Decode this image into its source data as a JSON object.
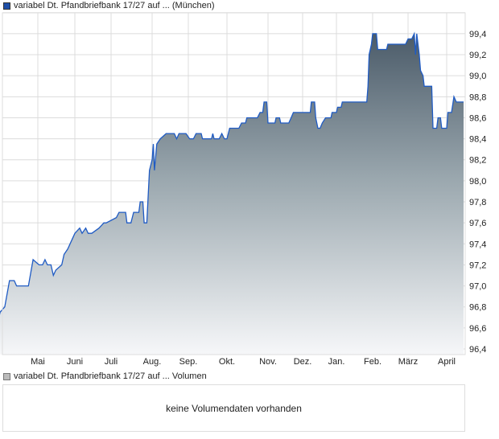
{
  "price_legend": {
    "label": "variabel Dt. Pfandbriefbank 17/27 auf ... (München)",
    "color": "#1f4fa8"
  },
  "volume_legend": {
    "label": "variabel Dt. Pfandbriefbank 17/27 auf ... Volumen",
    "color": "#bbbbbb"
  },
  "volume_message": "keine Volumendaten vorhanden",
  "chart_data": {
    "type": "area",
    "title": "",
    "xlabel": "",
    "ylabel": "",
    "ylim": [
      96.4,
      99.6
    ],
    "yticks": [
      "96,4",
      "96,6",
      "96,8",
      "97,0",
      "97,2",
      "97,4",
      "97,6",
      "97,8",
      "98,0",
      "98,2",
      "98,4",
      "98,6",
      "98,8",
      "99,0",
      "99,2",
      "99,4"
    ],
    "xticks": [
      "Mai",
      "Juni",
      "Juli",
      "Aug.",
      "Sep.",
      "Okt.",
      "Nov.",
      "Dez.",
      "Jan.",
      "Feb.",
      "März",
      "April"
    ],
    "grid": true,
    "line_color": "#1f5bc4",
    "fill_top_color": "#4b5b69",
    "fill_bottom_color": "#f6f7f9",
    "series": [
      {
        "points": [
          [
            "04-01",
            96.75
          ],
          [
            "04-04",
            96.7
          ],
          [
            "04-06",
            96.7
          ],
          [
            "04-07",
            97.15
          ],
          [
            "04-10",
            97.15
          ],
          [
            "04-11",
            96.75
          ],
          [
            "04-12",
            96.65
          ],
          [
            "04-14",
            96.65
          ],
          [
            "04-15",
            96.75
          ],
          [
            "04-17",
            96.8
          ],
          [
            "04-19",
            97.05
          ],
          [
            "04-21",
            97.05
          ],
          [
            "04-22",
            97.0
          ],
          [
            "04-27",
            97.0
          ],
          [
            "04-29",
            97.25
          ],
          [
            "05-02",
            97.2
          ],
          [
            "05-05",
            97.2
          ],
          [
            "05-07",
            97.25
          ],
          [
            "05-09",
            97.2
          ],
          [
            "05-12",
            97.2
          ],
          [
            "05-14",
            97.1
          ],
          [
            "05-16",
            97.15
          ],
          [
            "05-21",
            97.2
          ],
          [
            "05-23",
            97.3
          ],
          [
            "05-26",
            97.35
          ],
          [
            "05-30",
            97.45
          ],
          [
            "06-01",
            97.5
          ],
          [
            "06-05",
            97.55
          ],
          [
            "06-07",
            97.5
          ],
          [
            "06-10",
            97.55
          ],
          [
            "06-12",
            97.5
          ],
          [
            "06-15",
            97.5
          ],
          [
            "06-21",
            97.55
          ],
          [
            "06-25",
            97.6
          ],
          [
            "06-27",
            97.6
          ],
          [
            "07-05",
            97.65
          ],
          [
            "07-07",
            97.7
          ],
          [
            "07-12",
            97.7
          ],
          [
            "07-13",
            97.6
          ],
          [
            "07-16",
            97.6
          ],
          [
            "07-18",
            97.7
          ],
          [
            "07-22",
            97.7
          ],
          [
            "07-23",
            97.8
          ],
          [
            "07-25",
            97.8
          ],
          [
            "07-26",
            97.6
          ],
          [
            "07-28",
            97.6
          ],
          [
            "07-30",
            98.1
          ],
          [
            "08-01",
            98.2
          ],
          [
            "08-02",
            98.35
          ],
          [
            "08-03",
            98.1
          ],
          [
            "08-05",
            98.35
          ],
          [
            "08-08",
            98.4
          ],
          [
            "08-13",
            98.45
          ],
          [
            "08-20",
            98.45
          ],
          [
            "08-22",
            98.4
          ],
          [
            "08-24",
            98.45
          ],
          [
            "08-30",
            98.45
          ],
          [
            "09-02",
            98.4
          ],
          [
            "09-05",
            98.4
          ],
          [
            "09-07",
            98.45
          ],
          [
            "09-11",
            98.45
          ],
          [
            "09-12",
            98.4
          ],
          [
            "09-19",
            98.4
          ],
          [
            "09-20",
            98.45
          ],
          [
            "09-21",
            98.4
          ],
          [
            "09-25",
            98.4
          ],
          [
            "09-27",
            98.45
          ],
          [
            "09-29",
            98.4
          ],
          [
            "10-01",
            98.4
          ],
          [
            "10-03",
            98.5
          ],
          [
            "10-10",
            98.5
          ],
          [
            "10-12",
            98.55
          ],
          [
            "10-15",
            98.55
          ],
          [
            "10-16",
            98.6
          ],
          [
            "10-24",
            98.6
          ],
          [
            "10-26",
            98.65
          ],
          [
            "10-28",
            98.65
          ],
          [
            "10-29",
            98.75
          ],
          [
            "10-31",
            98.75
          ],
          [
            "11-01",
            98.55
          ],
          [
            "11-07",
            98.55
          ],
          [
            "11-08",
            98.6
          ],
          [
            "11-11",
            98.6
          ],
          [
            "11-12",
            98.55
          ],
          [
            "11-19",
            98.55
          ],
          [
            "11-21",
            98.6
          ],
          [
            "11-23",
            98.65
          ],
          [
            "12-08",
            98.65
          ],
          [
            "12-09",
            98.75
          ],
          [
            "12-12",
            98.75
          ],
          [
            "12-13",
            98.6
          ],
          [
            "12-15",
            98.5
          ],
          [
            "12-17",
            98.5
          ],
          [
            "12-19",
            98.55
          ],
          [
            "12-22",
            98.6
          ],
          [
            "12-27",
            98.6
          ],
          [
            "12-28",
            98.65
          ],
          [
            "01-01",
            98.65
          ],
          [
            "01-02",
            98.7
          ],
          [
            "01-05",
            98.7
          ],
          [
            "01-06",
            98.75
          ],
          [
            "01-27",
            98.75
          ],
          [
            "01-28",
            98.9
          ],
          [
            "01-29",
            99.2
          ],
          [
            "01-31",
            99.3
          ],
          [
            "02-01",
            99.4
          ],
          [
            "02-04",
            99.4
          ],
          [
            "02-05",
            99.25
          ],
          [
            "02-12",
            99.25
          ],
          [
            "02-13",
            99.3
          ],
          [
            "02-27",
            99.3
          ],
          [
            "03-01",
            99.35
          ],
          [
            "03-04",
            99.35
          ],
          [
            "03-06",
            99.4
          ],
          [
            "03-07",
            99.2
          ],
          [
            "03-08",
            99.4
          ],
          [
            "03-10",
            99.2
          ],
          [
            "03-11",
            99.05
          ],
          [
            "03-13",
            99.0
          ],
          [
            "03-14",
            98.9
          ],
          [
            "03-20",
            98.9
          ],
          [
            "03-21",
            98.5
          ],
          [
            "03-24",
            98.5
          ],
          [
            "03-25",
            98.6
          ],
          [
            "03-27",
            98.6
          ],
          [
            "03-28",
            98.5
          ],
          [
            "04-01",
            98.5
          ],
          [
            "04-02",
            98.65
          ],
          [
            "04-05",
            98.65
          ],
          [
            "04-07",
            98.8
          ],
          [
            "04-09",
            98.75
          ],
          [
            "04-15",
            98.75
          ]
        ]
      }
    ]
  }
}
